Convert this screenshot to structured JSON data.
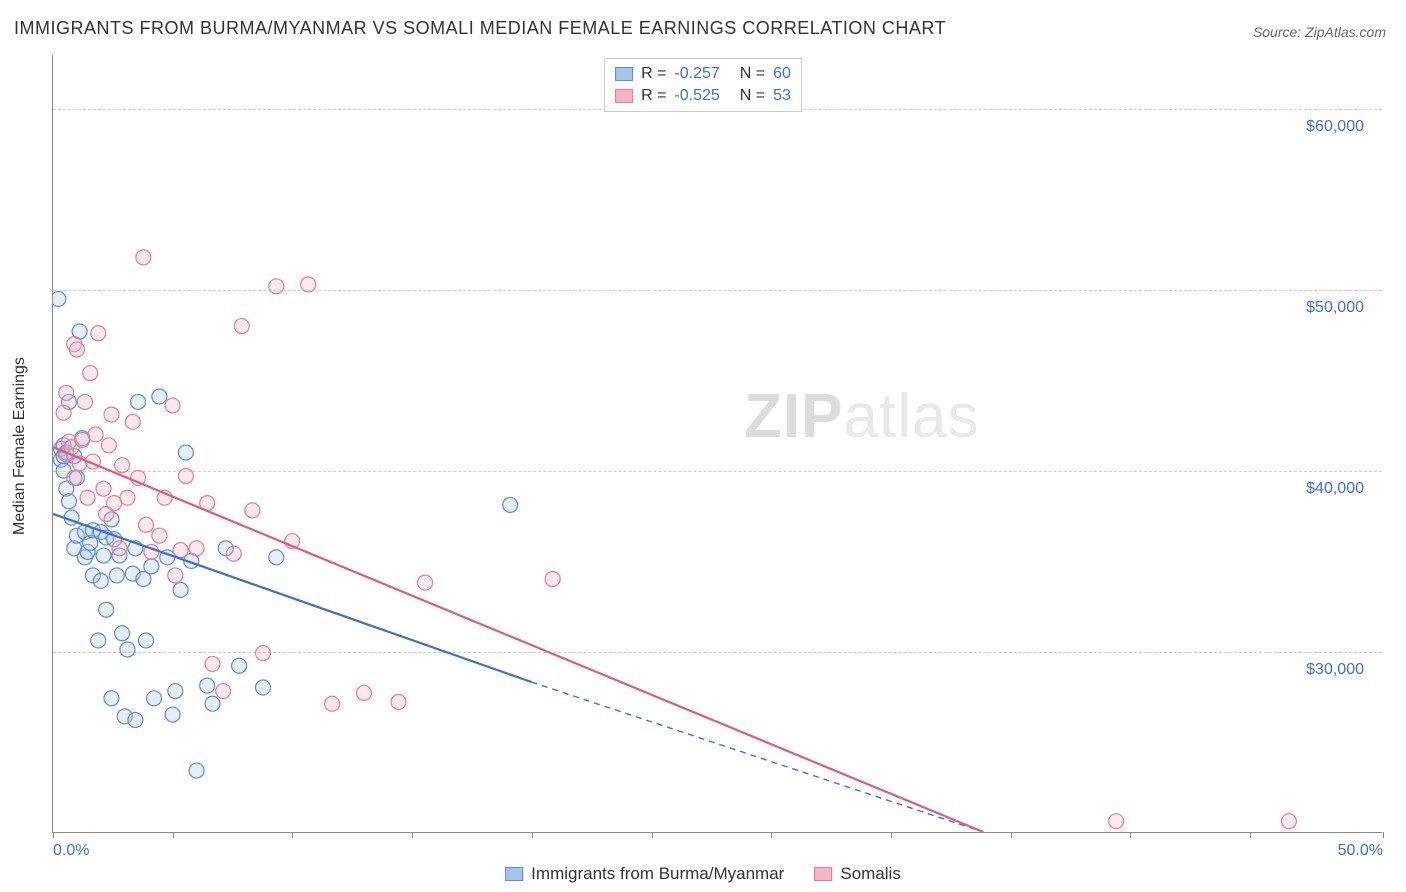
{
  "title": "IMMIGRANTS FROM BURMA/MYANMAR VS SOMALI MEDIAN FEMALE EARNINGS CORRELATION CHART",
  "source": "Source: ZipAtlas.com",
  "watermark_a": "ZIP",
  "watermark_b": "atlas",
  "chart": {
    "type": "scatter",
    "background_color": "#ffffff",
    "grid_color": "#cccccc",
    "axis_color": "#888888",
    "xlabel": "",
    "ylabel": "Median Female Earnings",
    "label_fontsize": 16,
    "xlim": [
      0,
      50
    ],
    "ylim": [
      20000,
      63000
    ],
    "x_ticks": [
      0,
      50
    ],
    "x_tick_labels": [
      "0.0%",
      "50.0%"
    ],
    "x_tick_marks": [
      0,
      4.5,
      9,
      13.5,
      18,
      22.5,
      27,
      31.5,
      36,
      40.5,
      45,
      50
    ],
    "y_ticks": [
      30000,
      40000,
      50000,
      60000
    ],
    "y_tick_labels": [
      "$30,000",
      "$40,000",
      "$50,000",
      "$60,000"
    ],
    "y_grid": [
      30000,
      40000,
      50000,
      60000
    ],
    "marker_radius": 7.5,
    "marker_stroke_width": 1.2,
    "marker_fill_opacity": 0.3,
    "trendline_width": 2.2,
    "series": [
      {
        "name": "Immigrants from Burma/Myanmar",
        "color_stroke": "#5b8dd6",
        "color_fill": "#a9c4ea",
        "line_color": "#3b6fd6",
        "R": "-0.257",
        "N": "60",
        "trend": {
          "x1": 0,
          "y1": 37600,
          "x2": 18,
          "y2": 28300,
          "x2_dash_to": 35,
          "y2_dash_to": 20000
        },
        "points": [
          [
            0.2,
            49500
          ],
          [
            0.3,
            41200
          ],
          [
            0.3,
            40600
          ],
          [
            0.4,
            40800
          ],
          [
            0.4,
            40000
          ],
          [
            0.4,
            41400
          ],
          [
            0.5,
            41000
          ],
          [
            0.5,
            39000
          ],
          [
            0.6,
            43800
          ],
          [
            0.6,
            38300
          ],
          [
            0.7,
            37400
          ],
          [
            0.8,
            35700
          ],
          [
            0.8,
            40800
          ],
          [
            0.9,
            36400
          ],
          [
            0.9,
            39600
          ],
          [
            1.0,
            47700
          ],
          [
            1.1,
            41800
          ],
          [
            1.2,
            35200
          ],
          [
            1.2,
            36600
          ],
          [
            1.3,
            35500
          ],
          [
            1.4,
            36000
          ],
          [
            1.5,
            34200
          ],
          [
            1.5,
            36700
          ],
          [
            1.7,
            30600
          ],
          [
            1.8,
            33900
          ],
          [
            1.8,
            36600
          ],
          [
            1.9,
            35300
          ],
          [
            2.0,
            36300
          ],
          [
            2.0,
            32300
          ],
          [
            2.2,
            37300
          ],
          [
            2.2,
            27400
          ],
          [
            2.3,
            36200
          ],
          [
            2.4,
            34200
          ],
          [
            2.5,
            35300
          ],
          [
            2.6,
            31000
          ],
          [
            2.7,
            26400
          ],
          [
            2.8,
            30100
          ],
          [
            3.0,
            34300
          ],
          [
            3.1,
            35700
          ],
          [
            3.1,
            26200
          ],
          [
            3.2,
            43800
          ],
          [
            3.4,
            34000
          ],
          [
            3.5,
            30600
          ],
          [
            3.7,
            34700
          ],
          [
            3.8,
            27400
          ],
          [
            4.0,
            44100
          ],
          [
            4.3,
            35200
          ],
          [
            4.5,
            26500
          ],
          [
            4.6,
            27800
          ],
          [
            4.8,
            33400
          ],
          [
            5.0,
            41000
          ],
          [
            5.2,
            35000
          ],
          [
            5.4,
            23400
          ],
          [
            5.8,
            28100
          ],
          [
            6.0,
            27100
          ],
          [
            6.5,
            35700
          ],
          [
            7.0,
            29200
          ],
          [
            7.9,
            28000
          ],
          [
            8.4,
            35200
          ],
          [
            17.2,
            38100
          ]
        ]
      },
      {
        "name": "Somalis",
        "color_stroke": "#e67a97",
        "color_fill": "#f3b6c5",
        "line_color": "#e05a7d",
        "R": "-0.525",
        "N": "53",
        "trend": {
          "x1": 0,
          "y1": 41300,
          "x2": 35,
          "y2": 20000,
          "x2_dash_to": 35,
          "y2_dash_to": 20000
        },
        "points": [
          [
            0.4,
            43200
          ],
          [
            0.5,
            44300
          ],
          [
            0.5,
            40900
          ],
          [
            0.6,
            41600
          ],
          [
            0.7,
            41300
          ],
          [
            0.8,
            39600
          ],
          [
            0.8,
            47000
          ],
          [
            0.9,
            46700
          ],
          [
            1.0,
            40400
          ],
          [
            1.1,
            41700
          ],
          [
            1.2,
            43800
          ],
          [
            1.3,
            38500
          ],
          [
            1.4,
            45400
          ],
          [
            1.5,
            40500
          ],
          [
            1.6,
            42000
          ],
          [
            1.7,
            47600
          ],
          [
            1.9,
            39000
          ],
          [
            2.0,
            37600
          ],
          [
            2.1,
            41400
          ],
          [
            2.2,
            43100
          ],
          [
            2.3,
            38200
          ],
          [
            2.5,
            35700
          ],
          [
            2.6,
            40300
          ],
          [
            2.8,
            38500
          ],
          [
            3.0,
            42700
          ],
          [
            3.2,
            39600
          ],
          [
            3.4,
            51800
          ],
          [
            3.5,
            37000
          ],
          [
            3.7,
            35500
          ],
          [
            4.0,
            36400
          ],
          [
            4.2,
            38500
          ],
          [
            4.5,
            43600
          ],
          [
            4.6,
            34200
          ],
          [
            4.8,
            35600
          ],
          [
            5.0,
            39700
          ],
          [
            5.4,
            35700
          ],
          [
            5.8,
            38200
          ],
          [
            6.0,
            29300
          ],
          [
            6.4,
            27800
          ],
          [
            6.8,
            35400
          ],
          [
            7.1,
            48000
          ],
          [
            7.5,
            37800
          ],
          [
            7.9,
            29900
          ],
          [
            8.4,
            50200
          ],
          [
            9.0,
            36100
          ],
          [
            9.6,
            50300
          ],
          [
            10.5,
            27100
          ],
          [
            11.7,
            27700
          ],
          [
            13.0,
            27200
          ],
          [
            14.0,
            33800
          ],
          [
            18.8,
            34000
          ],
          [
            40.0,
            20600
          ],
          [
            46.5,
            20600
          ]
        ]
      }
    ]
  },
  "legend_bottom": {
    "items": [
      {
        "label": "Immigrants from Burma/Myanmar",
        "fill": "#a9c4ea",
        "stroke": "#5b8dd6"
      },
      {
        "label": "Somalis",
        "fill": "#f3b6c5",
        "stroke": "#e67a97"
      }
    ]
  }
}
